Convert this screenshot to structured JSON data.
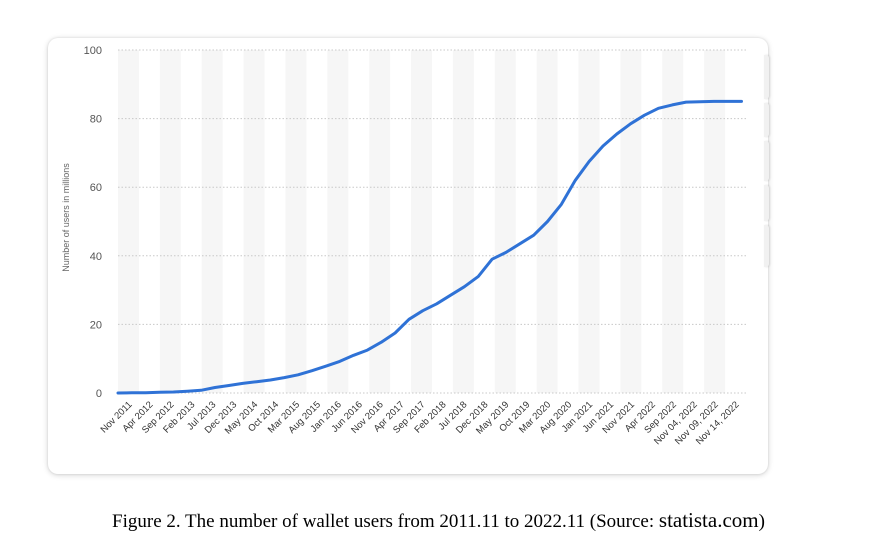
{
  "chart_data": {
    "type": "line",
    "title": "",
    "xlabel": "",
    "ylabel": "Number of users in millions",
    "ylim": [
      0,
      100
    ],
    "yticks": [
      0,
      20,
      40,
      60,
      80,
      100
    ],
    "grid": true,
    "legend": "none",
    "line_color": "#2f72d6",
    "x_tick_labels": [
      "Nov 2011",
      "Apr 2012",
      "Sep 2012",
      "Feb 2013",
      "Jul 2013",
      "Dec 2013",
      "May 2014",
      "Oct 2014",
      "Mar 2015",
      "Aug 2015",
      "Jan 2016",
      "Jun 2016",
      "Nov 2016",
      "Apr 2017",
      "Sep 2017",
      "Feb 2018",
      "Jul 2018",
      "Dec 2018",
      "May 2019",
      "Oct 2019",
      "Mar 2020",
      "Aug 2020",
      "Jan 2021",
      "Jun 2021",
      "Nov 2021",
      "Apr 2022",
      "Sep 2022",
      "Nov 04, 2022",
      "Nov 09, 2022",
      "Nov 14, 2022"
    ],
    "series": [
      {
        "name": "Wallet users",
        "values": [
          0,
          0.05,
          0.1,
          0.2,
          0.3,
          0.5,
          0.8,
          1.6,
          2.2,
          2.8,
          3.3,
          3.8,
          4.5,
          5.3,
          6.5,
          7.8,
          9.2,
          11.0,
          12.5,
          14.8,
          17.5,
          21.5,
          24.0,
          26.0,
          28.5,
          31.0,
          34.0,
          39.0,
          41.0,
          43.5,
          46.0,
          50.0,
          55.0,
          62.0,
          67.5,
          72.0,
          75.5,
          78.5,
          81.0,
          83.0,
          84.0,
          84.8,
          84.9,
          85.0,
          85.0,
          85.0
        ]
      }
    ]
  },
  "caption": {
    "text": "Figure 2. The number of wallet users from 2011.11  to 2022.11  (Source: ",
    "source": "statista.com",
    "close": ")"
  }
}
